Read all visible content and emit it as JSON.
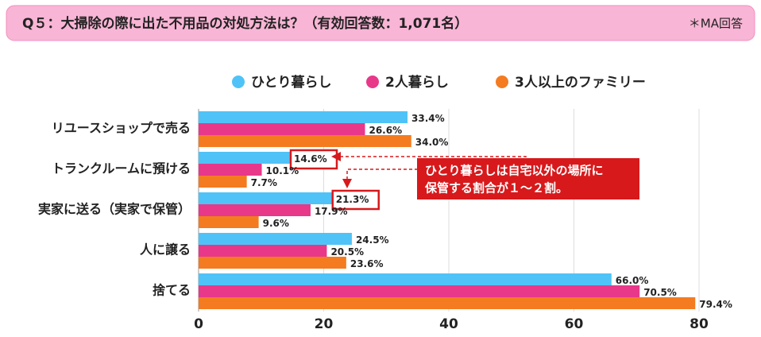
{
  "chart_data": {
    "type": "hbar",
    "title": "Q５：大掃除の際に出た不用品の対処方法は？（有効回答数：1,071名）",
    "note": "＊MA回答",
    "categories": [
      "リユースショップで売る",
      "トランクルームに預ける",
      "実家に送る（実家で保管）",
      "人に譲る",
      "捨てる"
    ],
    "series": [
      {
        "name": "ひとり暮らし",
        "color": "#4fc3f7",
        "values": [
          33.4,
          14.6,
          21.3,
          24.5,
          66.0
        ],
        "value_labels": [
          "33.4%",
          "14.6%",
          "21.3%",
          "24.5%",
          "66.0%"
        ]
      },
      {
        "name": "2人暮らし",
        "color": "#e8388a",
        "values": [
          26.6,
          10.1,
          17.9,
          20.5,
          70.5
        ],
        "value_labels": [
          "26.6%",
          "10.1%",
          "17.9%",
          "20.5%",
          "70.5%"
        ]
      },
      {
        "name": "3人以上のファミリー",
        "color": "#f47b20",
        "values": [
          34.0,
          7.7,
          9.6,
          23.6,
          79.4
        ],
        "value_labels": [
          "34.0%",
          "7.7%",
          "9.6%",
          "23.6%",
          "79.4%"
        ]
      }
    ],
    "xlim": [
      0,
      80
    ],
    "xticks": [
      0,
      20,
      40,
      60,
      80
    ],
    "grid": true,
    "annotation": [
      "ひとり暮らしは自宅以外の場所に",
      "保管する割合が１～２割。"
    ]
  }
}
